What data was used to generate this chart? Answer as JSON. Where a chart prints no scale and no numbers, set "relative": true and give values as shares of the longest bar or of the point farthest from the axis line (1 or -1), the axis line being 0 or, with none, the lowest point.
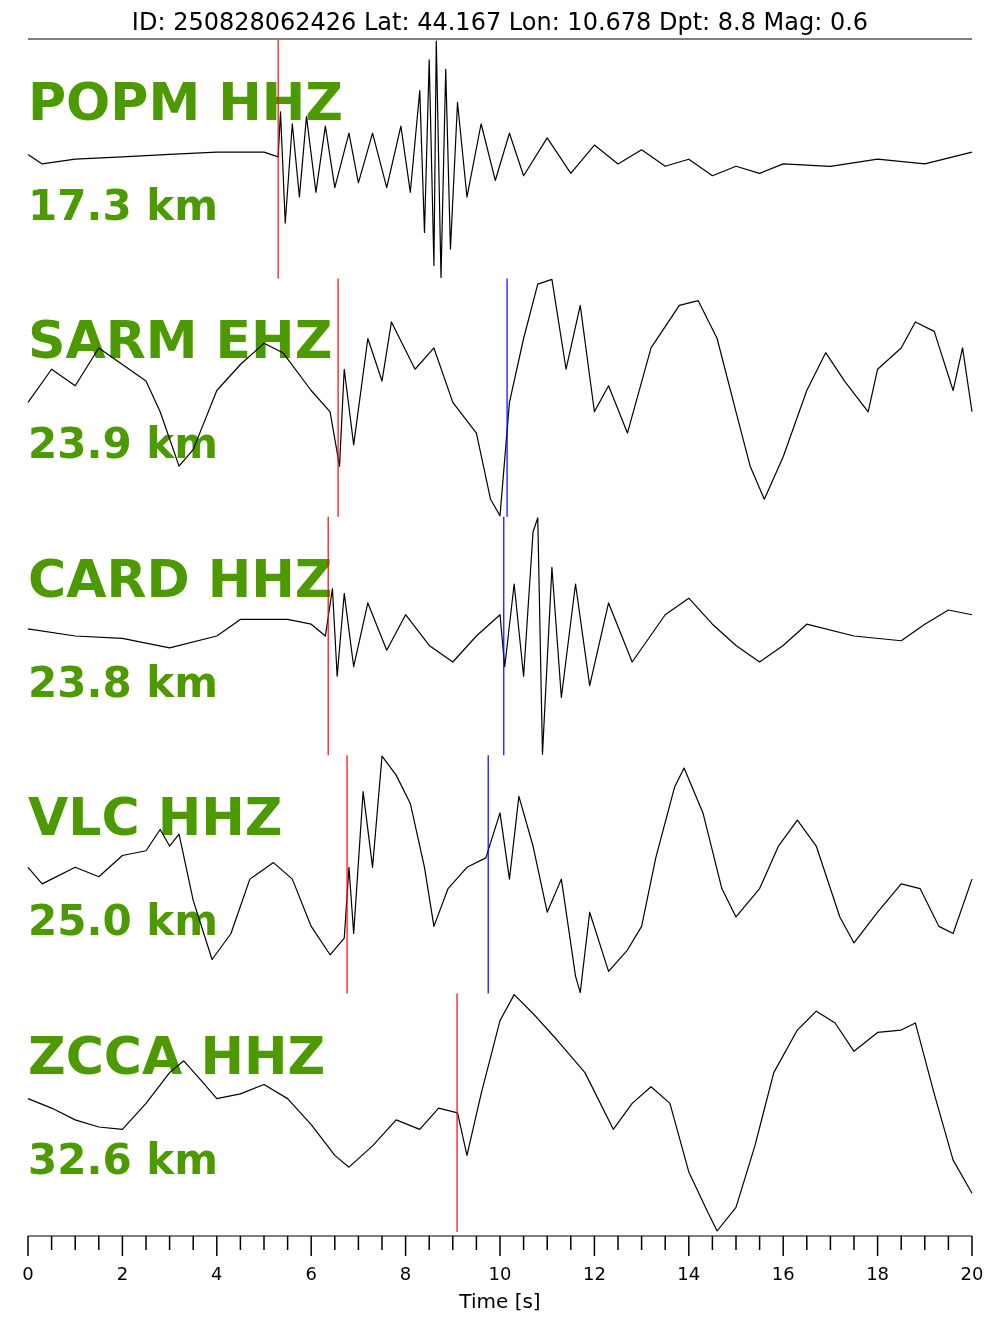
{
  "chart_data": [
    {
      "type": "line",
      "title": "ID: 250828062426 Lat:  44.167 Lon:  10.678 Dpt:     8.8 Mag:   0.6",
      "relative": true,
      "xlim": [
        0,
        20
      ],
      "tick_labels": false,
      "annotations": [
        "POPM HHZ",
        "17.3 km"
      ],
      "ref_lines": [
        {
          "axis": "x",
          "value": 5.3,
          "color": "#ff0000"
        }
      ],
      "series": [
        {
          "color": "#000000",
          "x": [
            0,
            0.3,
            1,
            2,
            3,
            4,
            5,
            5.3,
            5.35,
            5.45,
            5.6,
            5.75,
            5.9,
            6.1,
            6.3,
            6.5,
            6.8,
            7.0,
            7.3,
            7.6,
            7.9,
            8.1,
            8.3,
            8.4,
            8.5,
            8.6,
            8.65,
            8.75,
            8.85,
            8.95,
            9.1,
            9.3,
            9.6,
            9.9,
            10.2,
            10.5,
            11,
            11.5,
            12,
            12.5,
            13,
            13.5,
            14,
            14.5,
            15,
            15.5,
            16,
            17,
            18,
            19,
            20
          ],
          "values": [
            0.52,
            0.48,
            0.5,
            0.51,
            0.52,
            0.53,
            0.53,
            0.51,
            0.7,
            0.23,
            0.65,
            0.34,
            0.68,
            0.36,
            0.64,
            0.38,
            0.61,
            0.4,
            0.61,
            0.38,
            0.64,
            0.36,
            0.79,
            0.19,
            0.92,
            0.05,
            1,
            0,
            0.88,
            0.12,
            0.74,
            0.34,
            0.65,
            0.41,
            0.61,
            0.43,
            0.59,
            0.44,
            0.56,
            0.48,
            0.54,
            0.47,
            0.5,
            0.43,
            0.47,
            0.44,
            0.48,
            0.47,
            0.5,
            0.48,
            0.53
          ]
        }
      ]
    },
    {
      "type": "line",
      "relative": true,
      "xlim": [
        0,
        20
      ],
      "tick_labels": false,
      "annotations": [
        "SARM EHZ",
        "23.9 km"
      ],
      "ref_lines": [
        {
          "axis": "x",
          "value": 6.57,
          "color": "#ff0000"
        },
        {
          "axis": "x",
          "value": 10.15,
          "color": "#0000ff"
        }
      ],
      "series": [
        {
          "color": "#000000",
          "x": [
            0,
            0.5,
            1,
            1.5,
            2,
            2.5,
            2.8,
            3.2,
            3.5,
            4,
            4.5,
            5,
            5.4,
            6,
            6.4,
            6.6,
            6.7,
            6.9,
            7.2,
            7.5,
            7.7,
            8.2,
            8.6,
            9,
            9.5,
            9.8,
            10,
            10.2,
            10.5,
            10.8,
            11.1,
            11.4,
            11.7,
            12,
            12.3,
            12.7,
            13.2,
            13.8,
            14.2,
            14.6,
            15,
            15.3,
            15.6,
            16,
            16.5,
            16.9,
            17.3,
            17.8,
            18,
            18.5,
            18.8,
            19.2,
            19.6,
            19.8,
            20
          ],
          "values": [
            0.48,
            0.62,
            0.55,
            0.71,
            0.64,
            0.57,
            0.44,
            0.21,
            0.28,
            0.53,
            0.64,
            0.73,
            0.69,
            0.53,
            0.44,
            0.21,
            0.62,
            0.3,
            0.75,
            0.57,
            0.82,
            0.62,
            0.71,
            0.48,
            0.35,
            0.07,
            0,
            0.48,
            0.75,
            0.98,
            1,
            0.62,
            0.89,
            0.44,
            0.55,
            0.35,
            0.71,
            0.89,
            0.91,
            0.75,
            0.44,
            0.21,
            0.07,
            0.25,
            0.53,
            0.69,
            0.57,
            0.44,
            0.62,
            0.71,
            0.82,
            0.78,
            0.53,
            0.71,
            0.44
          ]
        }
      ]
    },
    {
      "type": "line",
      "relative": true,
      "xlim": [
        0,
        20
      ],
      "tick_labels": false,
      "annotations": [
        "CARD HHZ",
        "23.8 km"
      ],
      "ref_lines": [
        {
          "axis": "x",
          "value": 6.36,
          "color": "#ff0000"
        },
        {
          "axis": "x",
          "value": 10.08,
          "color": "#0000ff"
        }
      ],
      "series": [
        {
          "color": "#000000",
          "x": [
            0,
            1,
            2,
            3,
            4,
            4.5,
            5.5,
            6,
            6.3,
            6.45,
            6.55,
            6.7,
            6.9,
            7.2,
            7.6,
            8,
            8.5,
            9,
            9.5,
            10,
            10.1,
            10.3,
            10.5,
            10.7,
            10.8,
            10.9,
            11.1,
            11.3,
            11.6,
            11.9,
            12.3,
            12.8,
            13.5,
            14,
            14.5,
            15,
            15.5,
            16,
            16.5,
            17.5,
            18.5,
            19,
            19.5,
            20
          ],
          "values": [
            0.53,
            0.5,
            0.49,
            0.45,
            0.5,
            0.57,
            0.57,
            0.55,
            0.5,
            0.7,
            0.33,
            0.68,
            0.37,
            0.64,
            0.44,
            0.59,
            0.46,
            0.39,
            0.5,
            0.59,
            0.37,
            0.72,
            0.33,
            0.94,
            1,
            0,
            0.79,
            0.24,
            0.72,
            0.29,
            0.64,
            0.39,
            0.59,
            0.66,
            0.55,
            0.46,
            0.39,
            0.46,
            0.55,
            0.5,
            0.48,
            0.55,
            0.61,
            0.59
          ]
        }
      ]
    },
    {
      "type": "line",
      "relative": true,
      "xlim": [
        0,
        20
      ],
      "tick_labels": false,
      "annotations": [
        "VLC HHZ",
        "25.0 km"
      ],
      "ref_lines": [
        {
          "axis": "x",
          "value": 6.76,
          "color": "#ff0000"
        },
        {
          "axis": "x",
          "value": 9.75,
          "color": "#0000ff"
        }
      ],
      "series": [
        {
          "color": "#000000",
          "x": [
            0,
            0.3,
            1,
            1.5,
            2,
            2.5,
            2.8,
            3,
            3.2,
            3.5,
            3.9,
            4.3,
            4.7,
            5.2,
            5.6,
            6,
            6.4,
            6.7,
            6.8,
            6.9,
            7.1,
            7.3,
            7.5,
            7.8,
            8.1,
            8.4,
            8.6,
            8.9,
            9.3,
            9.7,
            10,
            10.2,
            10.4,
            10.7,
            11,
            11.3,
            11.6,
            11.7,
            11.9,
            12.3,
            12.7,
            13,
            13.3,
            13.7,
            13.9,
            14.3,
            14.7,
            15,
            15.5,
            15.9,
            16.3,
            16.7,
            17.2,
            17.5,
            18,
            18.5,
            18.9,
            19.3,
            19.6,
            20
          ],
          "values": [
            0.53,
            0.46,
            0.53,
            0.49,
            0.58,
            0.6,
            0.69,
            0.62,
            0.67,
            0.39,
            0.14,
            0.25,
            0.48,
            0.55,
            0.48,
            0.28,
            0.16,
            0.23,
            0.53,
            0.25,
            0.85,
            0.53,
            1,
            0.92,
            0.8,
            0.53,
            0.28,
            0.44,
            0.53,
            0.57,
            0.76,
            0.48,
            0.83,
            0.62,
            0.34,
            0.48,
            0.07,
            0,
            0.34,
            0.09,
            0.18,
            0.28,
            0.57,
            0.87,
            0.95,
            0.76,
            0.44,
            0.32,
            0.44,
            0.62,
            0.73,
            0.62,
            0.32,
            0.21,
            0.34,
            0.46,
            0.44,
            0.28,
            0.25,
            0.48
          ]
        }
      ]
    },
    {
      "type": "line",
      "relative": true,
      "xlim": [
        0,
        20
      ],
      "tick_labels": "x",
      "xlabel": "Time [s]",
      "annotations": [
        "ZCCA HHZ",
        "32.6 km"
      ],
      "ref_lines": [
        {
          "axis": "x",
          "value": 9.09,
          "color": "#ff0000"
        }
      ],
      "xticks": [
        0,
        {
          "value": 0.5,
          "label": null
        },
        {
          "value": 1,
          "label": null
        },
        {
          "value": 1.5,
          "label": null
        },
        2,
        {
          "value": 2.5,
          "label": null
        },
        {
          "value": 3,
          "label": null
        },
        {
          "value": 3.5,
          "label": null
        },
        4,
        {
          "value": 4.5,
          "label": null
        },
        {
          "value": 5,
          "label": null
        },
        {
          "value": 5.5,
          "label": null
        },
        6,
        {
          "value": 6.5,
          "label": null
        },
        {
          "value": 7,
          "label": null
        },
        {
          "value": 7.5,
          "label": null
        },
        8,
        {
          "value": 8.5,
          "label": null
        },
        {
          "value": 9,
          "label": null
        },
        {
          "value": 9.5,
          "label": null
        },
        10,
        {
          "value": 10.5,
          "label": null
        },
        {
          "value": 11,
          "label": null
        },
        {
          "value": 11.5,
          "label": null
        },
        12,
        {
          "value": 12.5,
          "label": null
        },
        {
          "value": 13,
          "label": null
        },
        {
          "value": 13.5,
          "label": null
        },
        14,
        {
          "value": 14.5,
          "label": null
        },
        {
          "value": 15,
          "label": null
        },
        {
          "value": 15.5,
          "label": null
        },
        16,
        {
          "value": 16.5,
          "label": null
        },
        {
          "value": 17,
          "label": null
        },
        {
          "value": 17.5,
          "label": null
        },
        18,
        {
          "value": 18.5,
          "label": null
        },
        {
          "value": 19,
          "label": null
        },
        {
          "value": 19.5,
          "label": null
        },
        20
      ],
      "series": [
        {
          "color": "#000000",
          "x": [
            0,
            0.5,
            1,
            1.5,
            2,
            2.5,
            3,
            3.3,
            3.7,
            4,
            4.5,
            5,
            5.5,
            6,
            6.5,
            6.8,
            7.3,
            7.8,
            8.3,
            8.7,
            9.1,
            9.3,
            9.6,
            10,
            10.3,
            10.7,
            11.2,
            11.8,
            12.4,
            12.8,
            13.2,
            13.6,
            14,
            14.4,
            14.6,
            15,
            15.4,
            15.8,
            16.3,
            16.7,
            17.1,
            17.5,
            18,
            18.5,
            18.8,
            19.2,
            19.6,
            20
          ],
          "values": [
            0.56,
            0.52,
            0.47,
            0.44,
            0.43,
            0.54,
            0.67,
            0.72,
            0.63,
            0.56,
            0.58,
            0.62,
            0.56,
            0.45,
            0.32,
            0.27,
            0.36,
            0.47,
            0.43,
            0.52,
            0.5,
            0.32,
            0.58,
            0.89,
            1,
            0.92,
            0.81,
            0.67,
            0.43,
            0.54,
            0.61,
            0.54,
            0.25,
            0.08,
            0,
            0.1,
            0.36,
            0.67,
            0.85,
            0.93,
            0.88,
            0.76,
            0.84,
            0.85,
            0.88,
            0.58,
            0.3,
            0.16
          ]
        }
      ]
    }
  ]
}
